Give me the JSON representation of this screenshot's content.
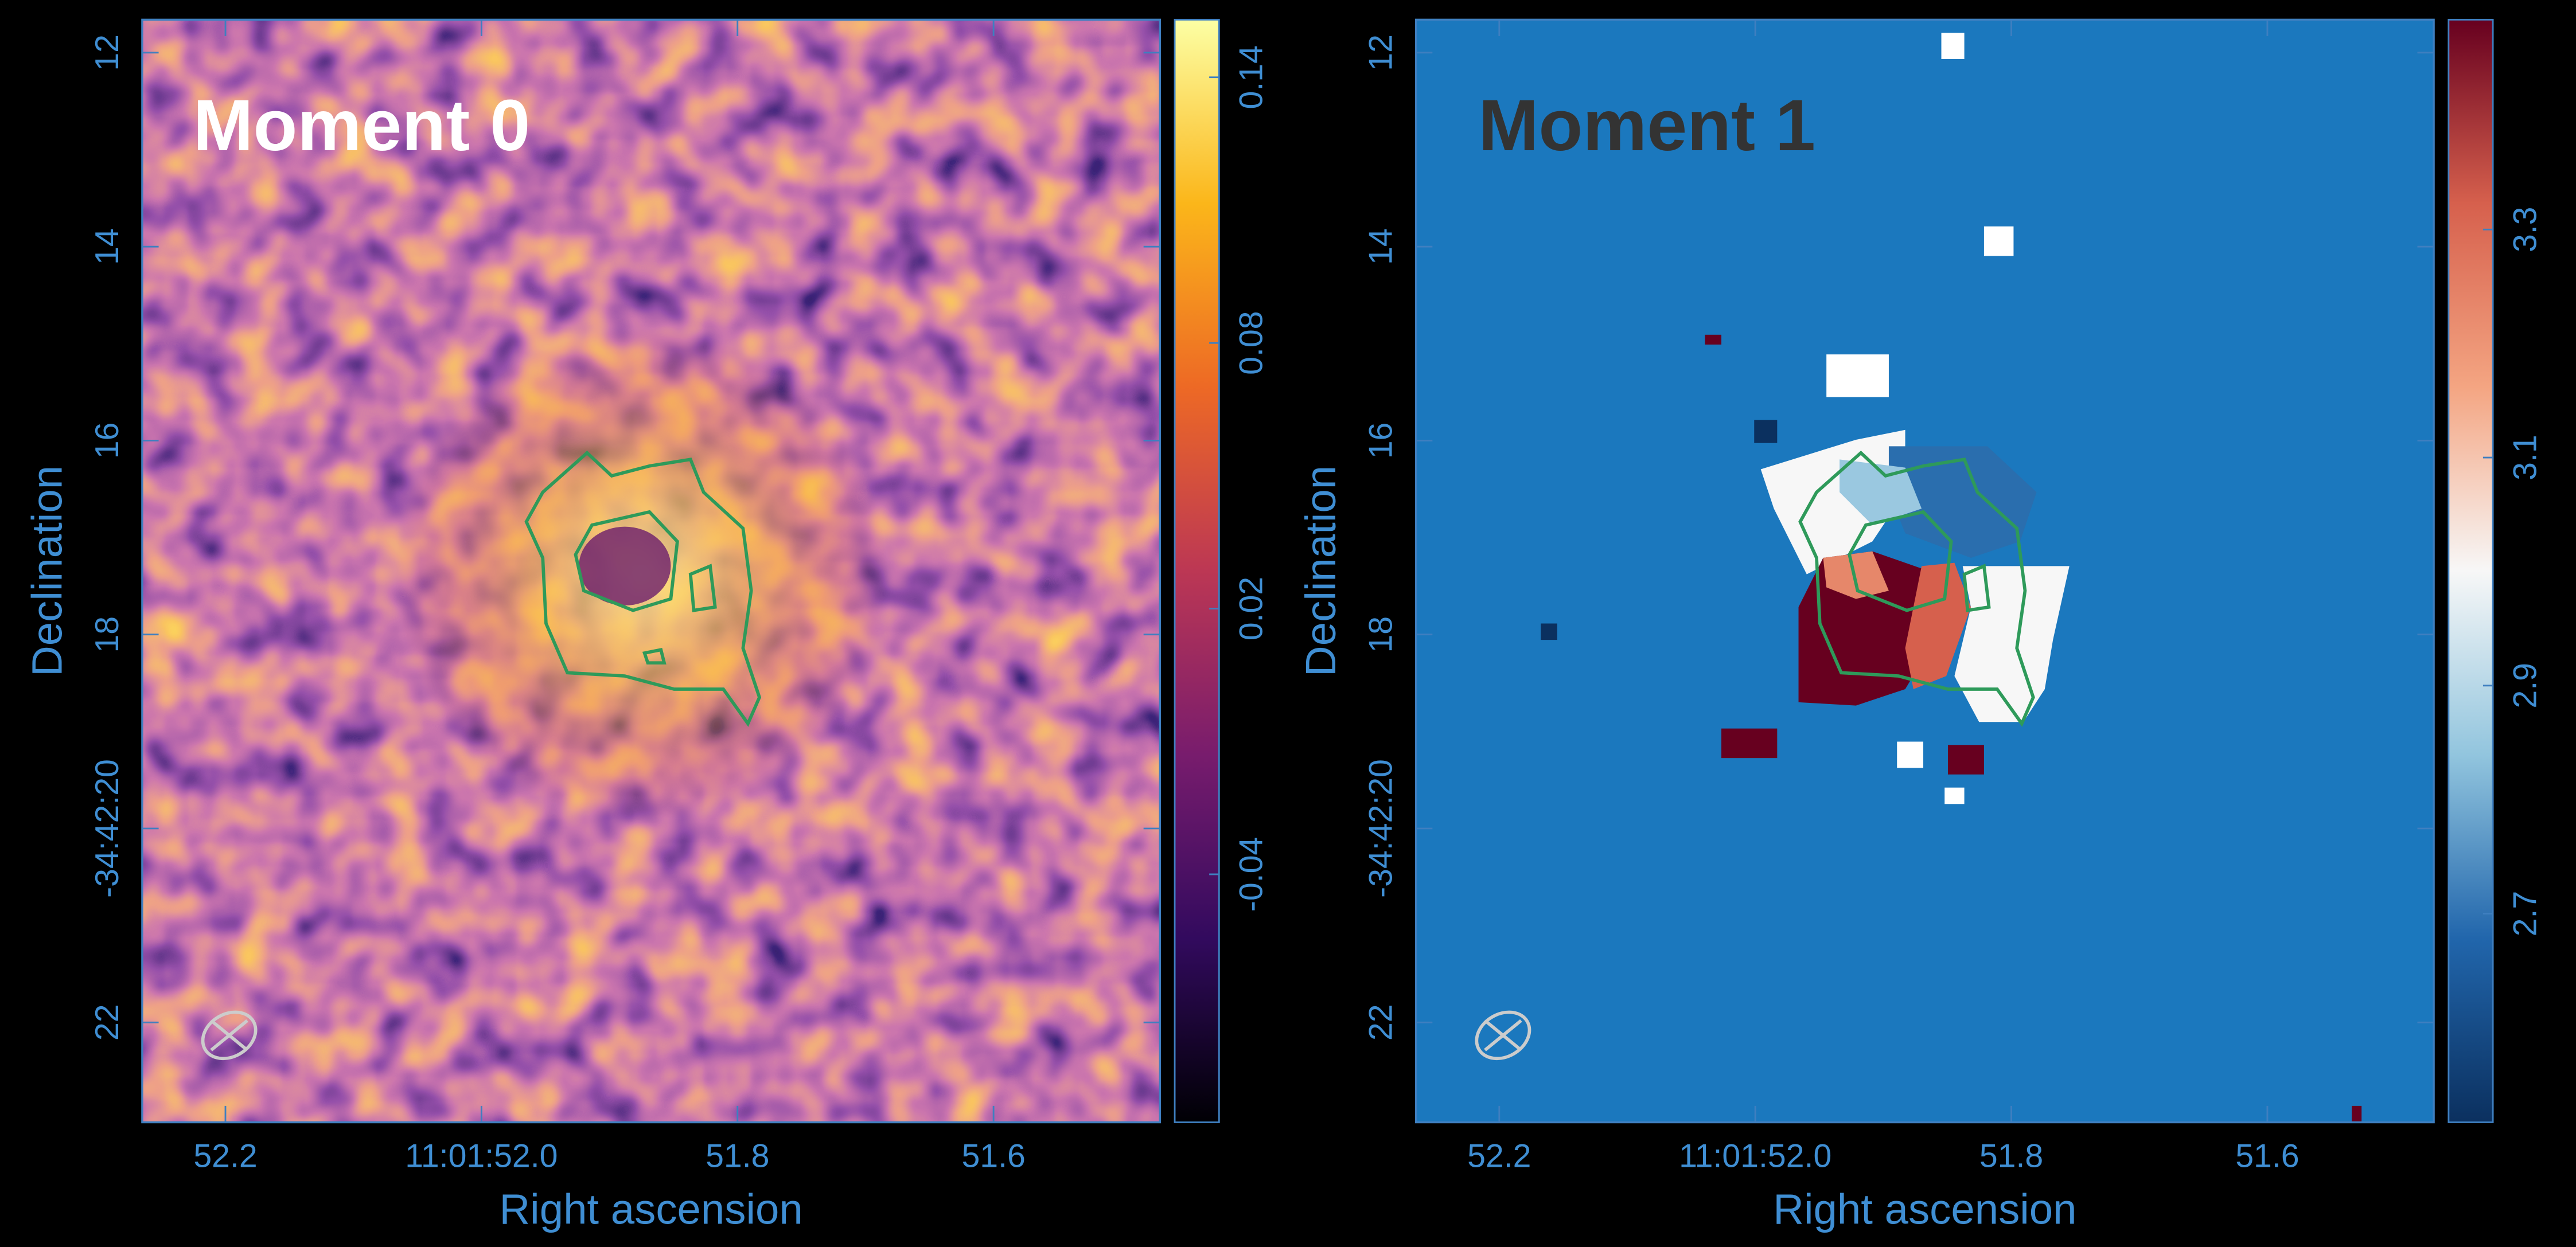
{
  "chart_data": [
    {
      "type": "image",
      "title": "Moment 0",
      "xlabel": "Right ascension",
      "ylabel": "Declination",
      "xlim": [
        52.265,
        51.47
      ],
      "xticks": [
        52.2,
        {
          "value": 52.0,
          "label": "11:01:52.0"
        },
        51.8,
        51.6
      ],
      "ylim": [
        23.03,
        11.66
      ],
      "yticks": [
        12,
        14,
        16,
        18,
        {
          "value": 20,
          "label": "-34:42:20"
        },
        22
      ],
      "clim": [
        -0.096,
        0.153
      ],
      "cticks": [
        0.14,
        0.08,
        0.02,
        -0.04
      ],
      "colormap": [
        "#000004",
        "#320a5e",
        "#781c6d",
        "#bc3754",
        "#ed6925",
        "#fbb61a",
        "#fcffa4"
      ],
      "title_color": "#ffffff"
    },
    {
      "type": "image",
      "title": "Moment 1",
      "xlabel": "Right ascension",
      "ylabel": "Declination",
      "xlim": [
        52.265,
        51.47
      ],
      "xticks": [
        52.2,
        {
          "value": 52.0,
          "label": "11:01:52.0"
        },
        51.8,
        51.6
      ],
      "ylim": [
        23.03,
        11.66
      ],
      "yticks": [
        12,
        14,
        16,
        18,
        {
          "value": 20,
          "label": "-34:42:20"
        },
        22
      ],
      "clim": [
        2.517,
        3.484
      ],
      "cticks": [
        3.3,
        3.1,
        2.9,
        2.7
      ],
      "colormap": [
        "#0b305f",
        "#2166ac",
        "#92c5de",
        "#f7f7f7",
        "#f4a582",
        "#d6604d",
        "#67001f"
      ],
      "title_color": "#333333"
    }
  ]
}
